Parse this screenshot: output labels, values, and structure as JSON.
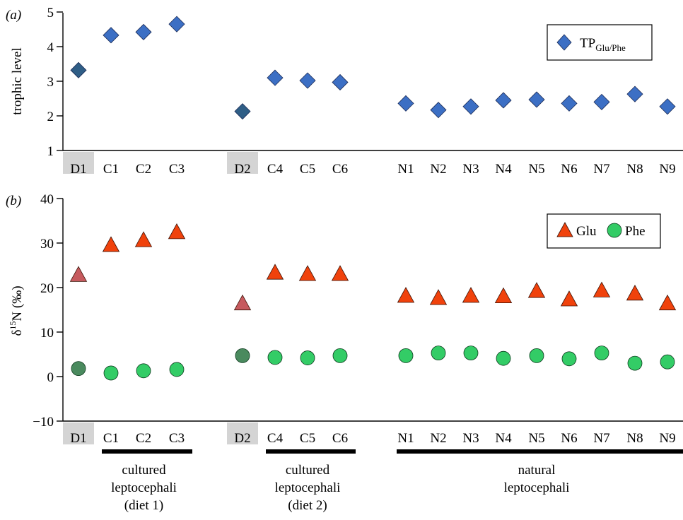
{
  "chart_data": [
    {
      "type": "scatter",
      "panel_label": "(a)",
      "ylabel": "trophic level",
      "ylim": [
        1,
        5
      ],
      "yticks": [
        1,
        2,
        3,
        4,
        5
      ],
      "grid": false,
      "legend_position": "top-right",
      "categories": [
        "D1",
        "C1",
        "C2",
        "C3",
        "D2",
        "C4",
        "C5",
        "C6",
        "N1",
        "N2",
        "N3",
        "N4",
        "N5",
        "N6",
        "N7",
        "N8",
        "N9"
      ],
      "highlighted_categories": [
        "D1",
        "D2"
      ],
      "series": [
        {
          "name": "TP",
          "name_subscript": "Glu/Phe",
          "marker": "diamond",
          "color": "#3c6fc4",
          "diet_color": "#2f5e86",
          "values": [
            3.32,
            4.33,
            4.42,
            4.65,
            2.13,
            3.1,
            3.02,
            2.97,
            2.36,
            2.17,
            2.27,
            2.45,
            2.47,
            2.36,
            2.4,
            2.63,
            2.27
          ]
        }
      ]
    },
    {
      "type": "scatter",
      "panel_label": "(b)",
      "ylabel": "δ15N (‰)",
      "ylabel_main": "δ",
      "ylabel_sup": "15",
      "ylabel_rest": "N (‰)",
      "ylim": [
        -10,
        40
      ],
      "yticks": [
        -10,
        0,
        10,
        20,
        30,
        40
      ],
      "grid": false,
      "legend_position": "top-right",
      "categories": [
        "D1",
        "C1",
        "C2",
        "C3",
        "D2",
        "C4",
        "C5",
        "C6",
        "N1",
        "N2",
        "N3",
        "N4",
        "N5",
        "N6",
        "N7",
        "N8",
        "N9"
      ],
      "highlighted_categories": [
        "D1",
        "D2"
      ],
      "series": [
        {
          "name": "Glu",
          "marker": "triangle",
          "color": "#f0420c",
          "diet_color": "#c65a5e",
          "values": [
            22.8,
            29.5,
            30.6,
            32.4,
            16.4,
            23.3,
            23.0,
            23.0,
            18.1,
            17.6,
            18.1,
            18.0,
            19.2,
            17.3,
            19.3,
            18.6,
            16.4
          ]
        },
        {
          "name": "Phe",
          "marker": "circle",
          "color": "#33cc66",
          "diet_color": "#4a8a5e",
          "values": [
            1.8,
            0.8,
            1.3,
            1.6,
            4.7,
            4.3,
            4.2,
            4.7,
            4.7,
            5.3,
            5.3,
            4.1,
            4.7,
            4.0,
            5.3,
            3.0,
            3.3
          ]
        }
      ],
      "groups": [
        {
          "lines": [
            "cultured",
            "leptocephali",
            "(diet 1)"
          ],
          "from": "C1",
          "to": "C3"
        },
        {
          "lines": [
            "cultured",
            "leptocephali",
            "(diet 2)"
          ],
          "from": "C4",
          "to": "C6"
        },
        {
          "lines": [
            "natural",
            "leptocephali"
          ],
          "from": "N1",
          "to": "N9"
        }
      ]
    }
  ]
}
